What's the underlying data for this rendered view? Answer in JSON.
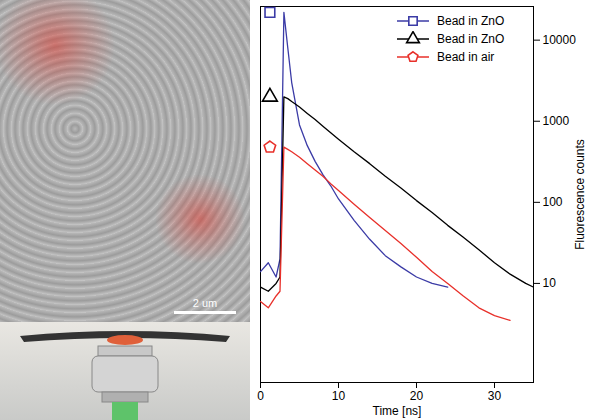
{
  "chart_data": {
    "type": "line",
    "x_label": "Time [ns]",
    "y_label": "Fluorescence counts",
    "x": [
      0,
      1,
      2,
      2.5,
      3,
      3.5,
      4,
      5,
      6,
      7,
      8,
      9,
      10,
      12,
      14,
      16,
      18,
      20,
      22,
      24,
      26,
      28,
      30,
      32,
      34,
      35
    ],
    "series": [
      {
        "name": "Bead in ZnO",
        "color": "#3b3ba6",
        "marker": "square",
        "values": [
          14,
          18,
          12,
          20,
          22000,
          8000,
          3000,
          900,
          500,
          320,
          220,
          160,
          110,
          60,
          35,
          22,
          16,
          12,
          10,
          9,
          null,
          null,
          null,
          null,
          null,
          null
        ]
      },
      {
        "name": "Bead in ZnO",
        "color": "#000000",
        "marker": "triangle",
        "values": [
          9,
          8,
          10,
          12,
          2000,
          1900,
          1750,
          1500,
          1250,
          1050,
          870,
          720,
          600,
          420,
          300,
          210,
          150,
          105,
          75,
          52,
          37,
          26,
          18,
          13,
          10,
          9
        ]
      },
      {
        "name": "Bead in air",
        "color": "#e8302a",
        "marker": "pentagon",
        "values": [
          6,
          5,
          7,
          8,
          480,
          450,
          420,
          360,
          300,
          250,
          210,
          170,
          140,
          95,
          65,
          45,
          31,
          21,
          14,
          10,
          7,
          5,
          4,
          3.5,
          null,
          null
        ]
      }
    ],
    "xlim": [
      0,
      35
    ],
    "xticks": [
      0,
      10,
      20,
      30
    ],
    "ylim": [
      0.6,
      26000
    ],
    "yticks": [
      10,
      100,
      1000,
      10000
    ],
    "log": "y",
    "legend": "top-right",
    "annotations": [
      "2 um"
    ]
  }
}
